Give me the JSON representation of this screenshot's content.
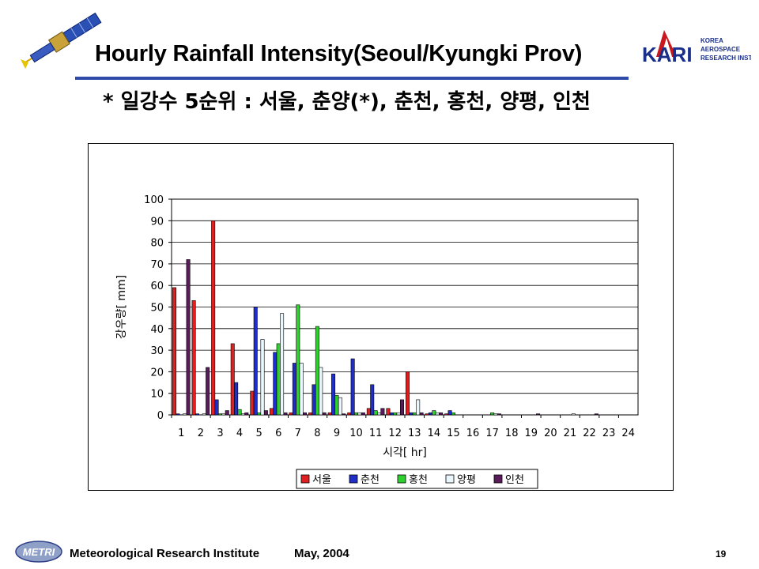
{
  "slide": {
    "title": "Hourly Rainfall Intensity(Seoul/Kyungki Prov)",
    "subtitle": "* 일강수 5순위 : 서울, 춘양(*), 춘천, 홍천, 양평, 인천",
    "logo_text": "KARI",
    "logo_lines": [
      "KOREA",
      "AEROSPACE",
      "RESEARCH INSTITUTE"
    ],
    "footer_logo_text": "METRI",
    "footer_institute": "Meteorological Research Institute",
    "footer_date": "May, 2004",
    "page_number": "19",
    "rule_color": "#2f4aa8"
  },
  "chart_data": {
    "type": "bar",
    "xlabel": "시각[ hr]",
    "ylabel": "강우량[ mm]",
    "ylim": [
      0,
      100
    ],
    "yticks": [
      0,
      10,
      20,
      30,
      40,
      50,
      60,
      70,
      80,
      90,
      100
    ],
    "grid": true,
    "legend_position": "bottom-center",
    "categories": [
      "1",
      "2",
      "3",
      "4",
      "5",
      "6",
      "7",
      "8",
      "9",
      "10",
      "11",
      "12",
      "13",
      "14",
      "15",
      "16",
      "17",
      "18",
      "19",
      "20",
      "21",
      "22",
      "23",
      "24"
    ],
    "series": [
      {
        "name": "서울",
        "color": "#e02020",
        "values": [
          59,
          53,
          90,
          33,
          11,
          3,
          1,
          1,
          1,
          1,
          3,
          3,
          20,
          0.5,
          0.5,
          0,
          0,
          0,
          0,
          0,
          0,
          0,
          0,
          0
        ]
      },
      {
        "name": "춘천",
        "color": "#1f2ec8",
        "values": [
          0.5,
          0.5,
          7,
          15,
          50,
          29,
          24,
          14,
          19,
          26,
          14,
          1,
          1,
          1,
          2,
          0,
          0,
          0,
          0,
          0,
          0,
          0,
          0,
          0
        ]
      },
      {
        "name": "홍천",
        "color": "#2ed12e",
        "values": [
          0,
          0,
          0.5,
          2.5,
          1,
          33,
          51,
          41,
          9,
          1,
          2,
          1,
          1,
          2,
          1,
          0,
          1,
          0,
          0,
          0,
          0,
          0,
          0,
          0
        ]
      },
      {
        "name": "양평",
        "color": "#e9f6fb",
        "values": [
          0.5,
          0.5,
          0.5,
          0.5,
          35,
          47,
          24,
          22,
          8,
          1,
          1,
          1,
          7,
          1,
          0,
          0,
          0.5,
          0,
          0,
          0,
          0.5,
          0,
          0,
          0
        ]
      },
      {
        "name": "인천",
        "color": "#5a1b5a",
        "values": [
          72,
          22,
          2,
          1,
          2,
          1,
          1,
          1,
          0.5,
          1,
          3,
          7,
          1,
          1,
          0,
          0,
          0.5,
          0,
          0.5,
          0,
          0,
          0.5,
          0,
          0
        ]
      }
    ]
  }
}
